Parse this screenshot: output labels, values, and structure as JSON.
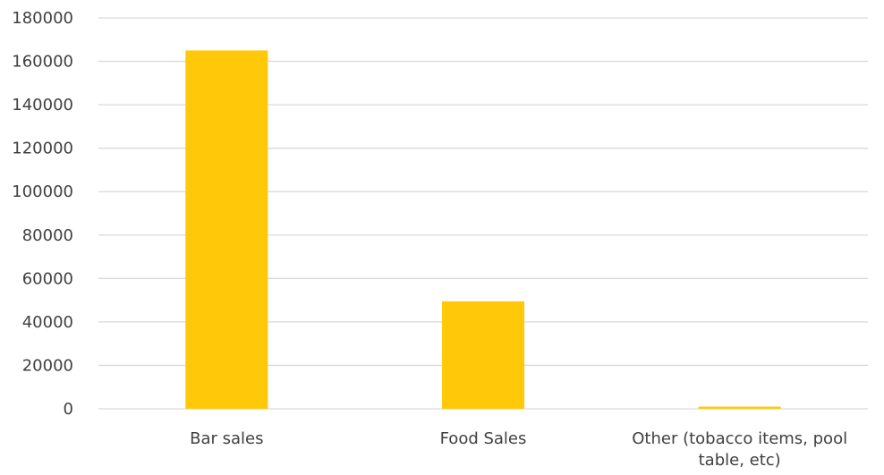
{
  "chart_data": {
    "type": "bar",
    "title": "",
    "xlabel": "",
    "ylabel": "",
    "categories": [
      [
        "Bar sales"
      ],
      [
        "Food Sales"
      ],
      [
        "Other (tobacco items, pool",
        "table, etc)"
      ]
    ],
    "values": [
      165000,
      49500,
      1000
    ],
    "ylim": [
      0,
      180000
    ],
    "yticks": [
      "0",
      "20000",
      "40000",
      "60000",
      "80000",
      "100000",
      "120000",
      "140000",
      "160000",
      "180000"
    ],
    "grid": true,
    "legend": "none",
    "colors": {
      "bar": "#FFC809",
      "grid": "#D9D9D9",
      "axis": "#D9D9D9",
      "text": "#404040"
    }
  }
}
